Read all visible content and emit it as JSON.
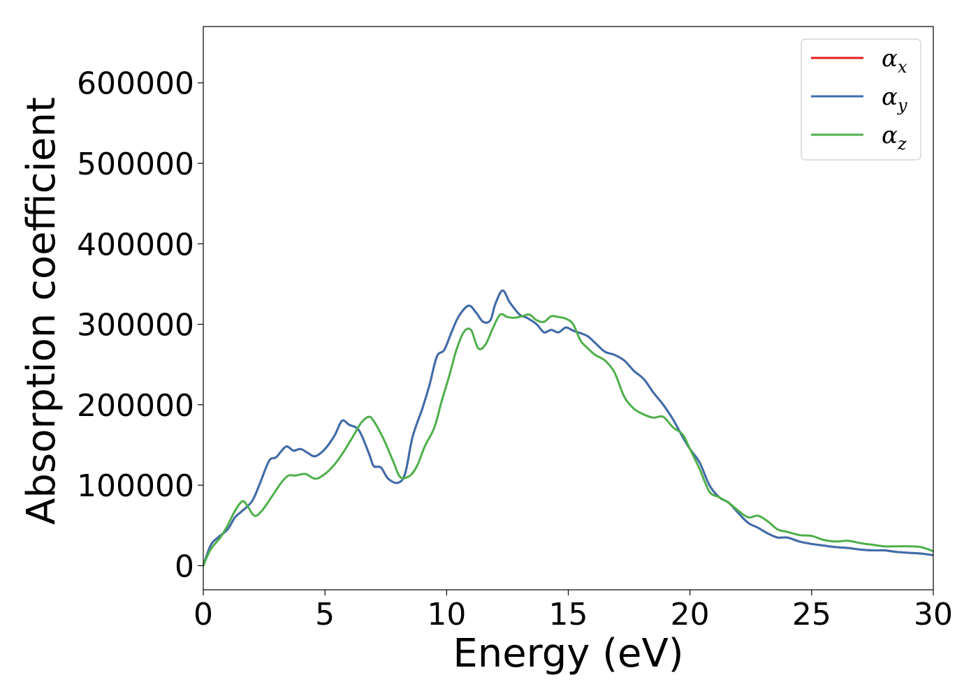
{
  "chart_data": {
    "type": "line",
    "xlabel": "Energy (eV)",
    "ylabel": "Absorption coefficient",
    "xlim": [
      0,
      30
    ],
    "ylim": [
      -30000,
      670000
    ],
    "xticks": [
      "0",
      "5",
      "10",
      "15",
      "20",
      "25",
      "30"
    ],
    "yticks": [
      "0",
      "100000",
      "200000",
      "300000",
      "400000",
      "500000",
      "600000"
    ],
    "grid": false,
    "legend_position": "top-right",
    "series": [
      {
        "name": "α",
        "sub": "x",
        "color": "#e41a1c",
        "x": [
          0,
          0.3,
          0.6,
          1.0,
          1.3,
          1.6,
          2.0,
          2.3,
          2.7,
          3.0,
          3.4,
          3.7,
          4.0,
          4.3,
          4.6,
          5.0,
          5.4,
          5.7,
          6.0,
          6.4,
          6.8,
          7.0,
          7.3,
          7.6,
          8.0,
          8.3,
          8.6,
          9.0,
          9.3,
          9.6,
          9.9,
          10.2,
          10.5,
          10.9,
          11.2,
          11.5,
          11.8,
          12.0,
          12.3,
          12.6,
          13.0,
          13.3,
          13.7,
          14.0,
          14.3,
          14.6,
          14.9,
          15.2,
          15.5,
          15.8,
          16.1,
          16.5,
          16.9,
          17.3,
          17.7,
          18.1,
          18.5,
          18.9,
          19.3,
          19.7,
          20.0,
          20.4,
          20.8,
          21.2,
          21.6,
          22.0,
          22.4,
          22.8,
          23.2,
          23.6,
          24.0,
          24.5,
          25.0,
          25.5,
          26.0,
          26.5,
          27.0,
          27.5,
          28.0,
          28.5,
          29.0,
          29.5,
          30.0
        ],
        "values": [
          0,
          25000,
          35000,
          45000,
          60000,
          68000,
          80000,
          100000,
          130000,
          135000,
          148000,
          143000,
          145000,
          140000,
          136000,
          145000,
          162000,
          180000,
          175000,
          168000,
          140000,
          124000,
          122000,
          108000,
          103000,
          115000,
          160000,
          195000,
          225000,
          260000,
          268000,
          290000,
          310000,
          323000,
          315000,
          303000,
          305000,
          325000,
          342000,
          327000,
          312000,
          308000,
          300000,
          290000,
          293000,
          290000,
          296000,
          292000,
          289000,
          285000,
          277000,
          266000,
          262000,
          255000,
          242000,
          232000,
          215000,
          200000,
          182000,
          160000,
          145000,
          128000,
          100000,
          85000,
          78000,
          65000,
          53000,
          47000,
          40000,
          35000,
          35000,
          30000,
          27000,
          25000,
          23000,
          22000,
          20000,
          19000,
          19000,
          17000,
          16000,
          15000,
          13000
        ]
      },
      {
        "name": "α",
        "sub": "y",
        "color": "#3b6fad",
        "x": [
          0,
          0.3,
          0.6,
          1.0,
          1.3,
          1.6,
          2.0,
          2.3,
          2.7,
          3.0,
          3.4,
          3.7,
          4.0,
          4.3,
          4.6,
          5.0,
          5.4,
          5.7,
          6.0,
          6.4,
          6.8,
          7.0,
          7.3,
          7.6,
          8.0,
          8.3,
          8.6,
          9.0,
          9.3,
          9.6,
          9.9,
          10.2,
          10.5,
          10.9,
          11.2,
          11.5,
          11.8,
          12.0,
          12.3,
          12.6,
          13.0,
          13.3,
          13.7,
          14.0,
          14.3,
          14.6,
          14.9,
          15.2,
          15.5,
          15.8,
          16.1,
          16.5,
          16.9,
          17.3,
          17.7,
          18.1,
          18.5,
          18.9,
          19.3,
          19.7,
          20.0,
          20.4,
          20.8,
          21.2,
          21.6,
          22.0,
          22.4,
          22.8,
          23.2,
          23.6,
          24.0,
          24.5,
          25.0,
          25.5,
          26.0,
          26.5,
          27.0,
          27.5,
          28.0,
          28.5,
          29.0,
          29.5,
          30.0
        ],
        "values": [
          0,
          25000,
          35000,
          45000,
          60000,
          68000,
          80000,
          100000,
          130000,
          135000,
          148000,
          143000,
          145000,
          140000,
          136000,
          145000,
          162000,
          180000,
          175000,
          168000,
          140000,
          124000,
          122000,
          108000,
          103000,
          115000,
          160000,
          195000,
          225000,
          260000,
          268000,
          290000,
          310000,
          323000,
          315000,
          303000,
          305000,
          325000,
          342000,
          327000,
          312000,
          308000,
          300000,
          290000,
          293000,
          290000,
          296000,
          292000,
          289000,
          285000,
          277000,
          266000,
          262000,
          255000,
          242000,
          232000,
          215000,
          200000,
          182000,
          160000,
          145000,
          128000,
          100000,
          85000,
          78000,
          65000,
          53000,
          47000,
          40000,
          35000,
          35000,
          30000,
          27000,
          25000,
          23000,
          22000,
          20000,
          19000,
          19000,
          17000,
          16000,
          15000,
          13000
        ]
      },
      {
        "name": "α",
        "sub": "z",
        "color": "#4daf4a",
        "x": [
          0,
          0.3,
          0.7,
          1.0,
          1.3,
          1.6,
          1.8,
          2.1,
          2.4,
          2.8,
          3.2,
          3.5,
          3.8,
          4.2,
          4.6,
          5.0,
          5.4,
          5.8,
          6.2,
          6.5,
          6.8,
          7.0,
          7.4,
          7.8,
          8.1,
          8.5,
          8.8,
          9.1,
          9.5,
          9.8,
          10.1,
          10.4,
          10.7,
          11.0,
          11.3,
          11.6,
          11.9,
          12.2,
          12.5,
          12.8,
          13.1,
          13.4,
          13.7,
          14.0,
          14.3,
          14.6,
          14.9,
          15.2,
          15.5,
          15.8,
          16.1,
          16.5,
          16.9,
          17.3,
          17.7,
          18.1,
          18.5,
          18.9,
          19.3,
          19.7,
          20.0,
          20.4,
          20.8,
          21.2,
          21.6,
          22.0,
          22.4,
          22.8,
          23.2,
          23.6,
          24.0,
          24.5,
          25.0,
          25.5,
          26.0,
          26.5,
          27.0,
          27.5,
          28.0,
          28.5,
          29.0,
          29.5,
          30.0
        ],
        "values": [
          0,
          20000,
          35000,
          50000,
          68000,
          80000,
          75000,
          62000,
          68000,
          85000,
          103000,
          112000,
          112000,
          114000,
          108000,
          114000,
          126000,
          143000,
          163000,
          178000,
          185000,
          180000,
          158000,
          130000,
          110000,
          112000,
          125000,
          148000,
          172000,
          205000,
          235000,
          268000,
          290000,
          293000,
          270000,
          275000,
          295000,
          312000,
          309000,
          308000,
          310000,
          312000,
          305000,
          303000,
          310000,
          309000,
          307000,
          300000,
          280000,
          270000,
          262000,
          255000,
          240000,
          210000,
          195000,
          188000,
          184000,
          185000,
          172000,
          163000,
          145000,
          120000,
          92000,
          85000,
          78000,
          68000,
          60000,
          62000,
          55000,
          45000,
          42000,
          38000,
          37000,
          32000,
          30000,
          31000,
          28000,
          26000,
          24000,
          24000,
          24000,
          23000,
          18000
        ]
      }
    ]
  }
}
